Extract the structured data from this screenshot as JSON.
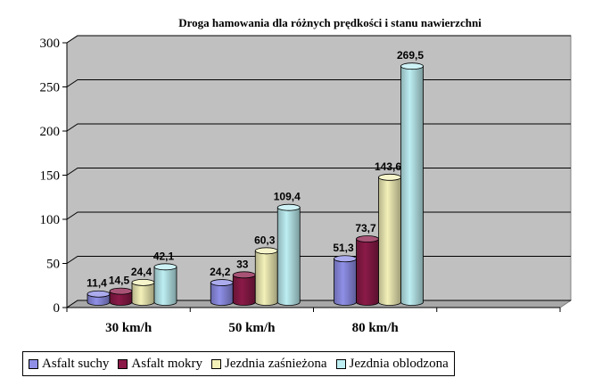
{
  "chart_data": {
    "type": "bar",
    "title": "Droga hamowania dla różnych prędkości i stanu nawierzchni",
    "xlabel": "",
    "ylabel": "",
    "categories": [
      "30 km/h",
      "50 km/h",
      "80 km/h"
    ],
    "ylim": [
      0,
      300
    ],
    "yticks": [
      "0",
      "50",
      "100",
      "150",
      "200",
      "250",
      "300"
    ],
    "grid": true,
    "legend_position": "bottom",
    "series": [
      {
        "name": "Asfalt suchy",
        "values": [
          11.4,
          24.2,
          51.3
        ],
        "labels": [
          "11,4",
          "24,2",
          "51,3"
        ],
        "color": "#8F8FE8"
      },
      {
        "name": "Asfalt mokry",
        "values": [
          14.5,
          33,
          73.7
        ],
        "labels": [
          "14,5",
          "33",
          "73,7"
        ],
        "color": "#8B1A48"
      },
      {
        "name": "Jezdnia zaśnieżona",
        "values": [
          24.4,
          60.3,
          143.6
        ],
        "labels": [
          "24,4",
          "60,3",
          "143,6"
        ],
        "color": "#F3F0B8"
      },
      {
        "name": "Jezdnia oblodzona",
        "values": [
          42.1,
          109.4,
          269.5
        ],
        "labels": [
          "42,1",
          "109,4",
          "269,5"
        ],
        "color": "#BDEEF2"
      }
    ],
    "colors": {
      "plot_background": "#C0C0C0",
      "floor": "#A8A8A8"
    }
  }
}
